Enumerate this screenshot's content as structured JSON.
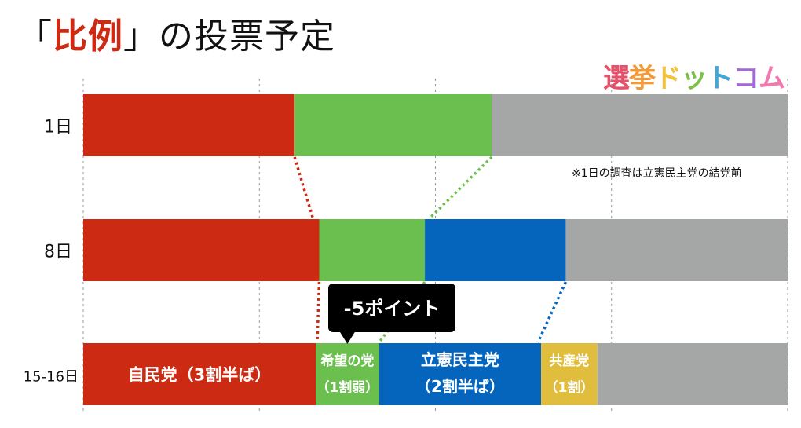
{
  "title": {
    "open": "「",
    "highlight": "比例",
    "close": "」",
    "rest": "の投票予定"
  },
  "logo": {
    "text": "選挙ドットコム",
    "colors": [
      "#e8506a",
      "#f29a3a",
      "#f2c23a",
      "#7cc04a",
      "#3fa8d8",
      "#a06ad0",
      "#f07ab0"
    ]
  },
  "note": "※1日の調査は立憲民主党の結党前",
  "callout": "-5ポイント",
  "chart_data": {
    "type": "bar",
    "orientation": "horizontal",
    "stacked": true,
    "xlim": [
      0,
      100
    ],
    "grid": true,
    "categories": [
      "1日",
      "8日",
      "15-16日"
    ],
    "series": [
      {
        "name": "自民党",
        "color": "#cc2a12",
        "values": [
          30,
          33.5,
          33
        ]
      },
      {
        "name": "希望の党",
        "color": "#6bbf4e",
        "values": [
          28,
          15,
          9
        ]
      },
      {
        "name": "立憲民主党",
        "color": "#0565bd",
        "values": [
          0,
          20,
          23
        ]
      },
      {
        "name": "共産党",
        "color": "#e0bd3c",
        "values": [
          0,
          0,
          8
        ]
      },
      {
        "name": "",
        "color": "#a5a7a6",
        "values": [
          42,
          31.5,
          27
        ]
      }
    ],
    "data_labels": [
      {
        "series": "自民党",
        "category": "15-16日",
        "lines": [
          "自民党（3割半ば）"
        ]
      },
      {
        "series": "希望の党",
        "category": "15-16日",
        "lines": [
          "希望の党",
          "（1割弱）"
        ]
      },
      {
        "series": "立憲民主党",
        "category": "15-16日",
        "lines": [
          "立憲民主党",
          "（2割半ば）"
        ]
      },
      {
        "series": "共産党",
        "category": "15-16日",
        "lines": [
          "共産党",
          "（1割）"
        ]
      }
    ]
  }
}
